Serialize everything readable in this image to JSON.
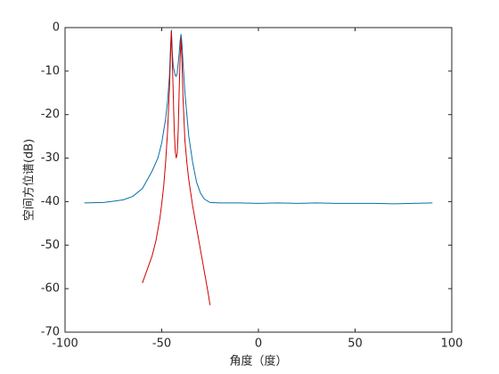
{
  "chart_data": {
    "type": "line",
    "xlabel": "角度（度）",
    "ylabel": "空间方位谱(dB)",
    "xlim": [
      -100,
      100
    ],
    "xticks": [
      -100,
      -50,
      0,
      50,
      100
    ],
    "ylim": [
      -70,
      0
    ],
    "yticks": [
      -70,
      -60,
      -50,
      -40,
      -30,
      -20,
      -10,
      0
    ],
    "grid": false,
    "series": [
      {
        "color": "#0b6fa8",
        "x": [
          -90,
          -80,
          -70,
          -65,
          -60,
          -55,
          -52,
          -50,
          -48,
          -47,
          -46,
          -45.5,
          -45,
          -44.5,
          -44,
          -43,
          -42.5,
          -42,
          -41,
          -40.5,
          -40,
          -39.5,
          -39,
          -38,
          -36,
          -34,
          -32,
          -30,
          -28,
          -25,
          -20,
          -10,
          0,
          10,
          20,
          30,
          40,
          50,
          60,
          70,
          80,
          90
        ],
        "values": [
          -40.3,
          -40.2,
          -39.6,
          -38.8,
          -37,
          -33,
          -30,
          -26.5,
          -21,
          -17,
          -11,
          -5,
          -0.5,
          -6,
          -9,
          -11,
          -11.2,
          -10.5,
          -6,
          -3,
          -1.5,
          -4,
          -8,
          -15,
          -25,
          -31,
          -35.5,
          -38,
          -39.4,
          -40.2,
          -40.3,
          -40.3,
          -40.4,
          -40.3,
          -40.4,
          -40.3,
          -40.4,
          -40.4,
          -40.4,
          -40.5,
          -40.4,
          -40.3
        ]
      },
      {
        "color": "#d00000",
        "x": [
          -60,
          -57,
          -55,
          -53,
          -51,
          -50,
          -49,
          -48,
          -47,
          -46,
          -45.5,
          -45,
          -44.5,
          -44,
          -43.5,
          -43,
          -42.5,
          -42,
          -41.5,
          -41,
          -40.5,
          -40,
          -39.5,
          -39,
          -38,
          -37,
          -36,
          -34,
          -32,
          -30,
          -28,
          -26,
          -25
        ],
        "values": [
          -58.7,
          -55,
          -52.5,
          -49,
          -44,
          -40.5,
          -36.5,
          -31,
          -24,
          -14,
          -7,
          -0.8,
          -8,
          -16,
          -24,
          -28.5,
          -30,
          -29,
          -24,
          -15,
          -7,
          -2.5,
          -8,
          -16,
          -26,
          -31,
          -35,
          -41,
          -46,
          -51,
          -56,
          -61,
          -63.8
        ]
      }
    ]
  }
}
